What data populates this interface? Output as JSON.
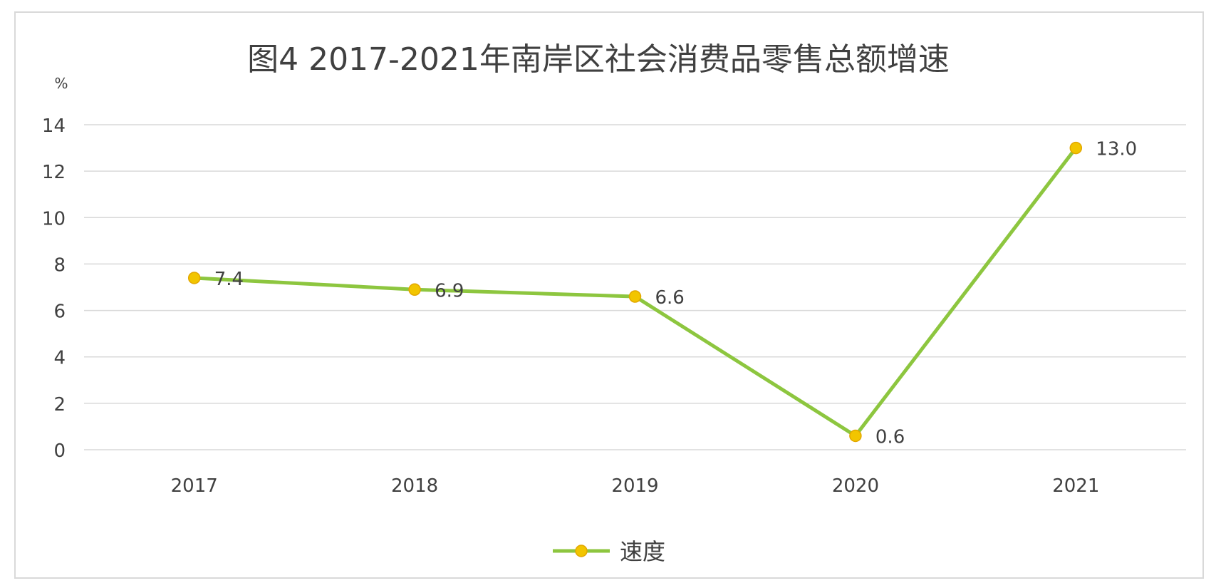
{
  "chart_data": {
    "type": "line",
    "title": "图4  2017-2021年南岸区社会消费品零售总额增速",
    "y_unit": "%",
    "categories": [
      "2017",
      "2018",
      "2019",
      "2020",
      "2021"
    ],
    "series": [
      {
        "name": "速度",
        "values": [
          7.4,
          6.9,
          6.6,
          0.6,
          13.0
        ],
        "labels": [
          "7.4",
          "6.9",
          "6.6",
          "0.6",
          "13.0"
        ]
      }
    ],
    "ylim": [
      0,
      14
    ],
    "yticks": [
      "0",
      "2",
      "4",
      "6",
      "8",
      "10",
      "12",
      "14"
    ],
    "grid": true,
    "legend_position": "bottom",
    "colors": {
      "line": "#8dc63f",
      "marker": "#f2c500",
      "marker_edge": "#e2a700",
      "grid": "#d9d9d9",
      "text": "#404040"
    }
  }
}
